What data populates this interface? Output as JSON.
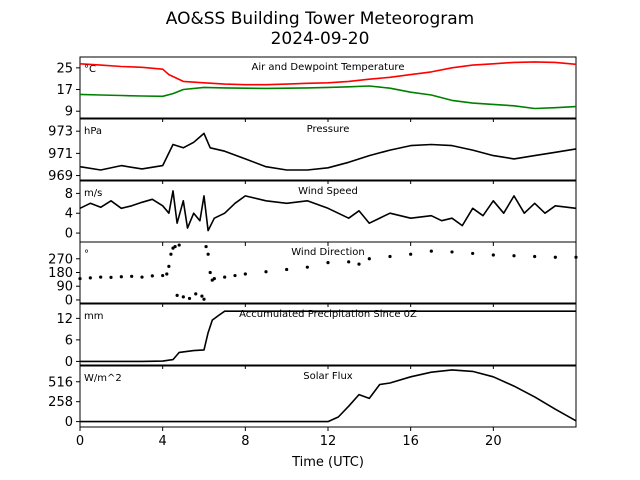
{
  "title_line1": "AO&SS Building Tower Meteorogram",
  "title_line2": "2024-09-20",
  "xlabel": "Time (UTC)",
  "colors": {
    "temperature": "#ff0000",
    "dewpoint": "#008000",
    "default": "#000000"
  },
  "chart_data": [
    {
      "type": "line",
      "title": "Air and Dewpoint Temperature",
      "unit": "°C",
      "xlim": [
        0,
        24
      ],
      "ylim": [
        6.5,
        29
      ],
      "yticks": [
        9,
        17,
        25
      ],
      "series": [
        {
          "color": "#ff0000",
          "points": [
            [
              0,
              26.5
            ],
            [
              1,
              26
            ],
            [
              2,
              25.5
            ],
            [
              3,
              25.2
            ],
            [
              4,
              24.5
            ],
            [
              4.3,
              22.5
            ],
            [
              5,
              20
            ],
            [
              6,
              19.5
            ],
            [
              7,
              19
            ],
            [
              8,
              18.8
            ],
            [
              9,
              18.8
            ],
            [
              10,
              19
            ],
            [
              11,
              19.3
            ],
            [
              12,
              19.5
            ],
            [
              13,
              20
            ],
            [
              14,
              20.8
            ],
            [
              15,
              21.5
            ],
            [
              16,
              22.5
            ],
            [
              17,
              23.5
            ],
            [
              18,
              25
            ],
            [
              19,
              26
            ],
            [
              20,
              26.5
            ],
            [
              21,
              27
            ],
            [
              22,
              27.2
            ],
            [
              23,
              27
            ],
            [
              24,
              26.3
            ]
          ]
        },
        {
          "color": "#008000",
          "points": [
            [
              0,
              15.2
            ],
            [
              1,
              15
            ],
            [
              2,
              14.8
            ],
            [
              3,
              14.6
            ],
            [
              4,
              14.5
            ],
            [
              4.5,
              15.5
            ],
            [
              5,
              17
            ],
            [
              6,
              17.8
            ],
            [
              7,
              17.6
            ],
            [
              8,
              17.5
            ],
            [
              9,
              17.4
            ],
            [
              10,
              17.5
            ],
            [
              11,
              17.6
            ],
            [
              12,
              17.8
            ],
            [
              13,
              18
            ],
            [
              14,
              18.3
            ],
            [
              15,
              17.5
            ],
            [
              16,
              16
            ],
            [
              17,
              15
            ],
            [
              18,
              13
            ],
            [
              19,
              12
            ],
            [
              20,
              11.5
            ],
            [
              21,
              11
            ],
            [
              22,
              10
            ],
            [
              23,
              10.3
            ],
            [
              24,
              10.7
            ]
          ]
        }
      ]
    },
    {
      "type": "line",
      "title": "Pressure",
      "unit": "hPa",
      "xlim": [
        0,
        24
      ],
      "ylim": [
        968.6,
        974.1
      ],
      "yticks": [
        969,
        971,
        973
      ],
      "series": [
        {
          "color": "#000000",
          "points": [
            [
              0,
              969.8
            ],
            [
              1,
              969.5
            ],
            [
              2,
              969.9
            ],
            [
              3,
              969.6
            ],
            [
              4,
              969.9
            ],
            [
              4.5,
              971.8
            ],
            [
              5,
              971.5
            ],
            [
              5.5,
              972
            ],
            [
              6,
              972.8
            ],
            [
              6.3,
              971.5
            ],
            [
              7,
              971.2
            ],
            [
              8,
              970.5
            ],
            [
              9,
              969.8
            ],
            [
              10,
              969.5
            ],
            [
              11,
              969.5
            ],
            [
              12,
              969.7
            ],
            [
              13,
              970.2
            ],
            [
              14,
              970.8
            ],
            [
              15,
              971.3
            ],
            [
              16,
              971.7
            ],
            [
              17,
              971.8
            ],
            [
              18,
              971.7
            ],
            [
              19,
              971.3
            ],
            [
              20,
              970.8
            ],
            [
              21,
              970.5
            ],
            [
              22,
              970.8
            ],
            [
              23,
              971.1
            ],
            [
              24,
              971.4
            ]
          ]
        }
      ]
    },
    {
      "type": "line",
      "title": "Wind Speed",
      "unit": "m/s",
      "xlim": [
        0,
        24
      ],
      "ylim": [
        -1.8,
        10.5
      ],
      "yticks": [
        0,
        4,
        8
      ],
      "series": [
        {
          "color": "#000000",
          "points": [
            [
              0,
              5
            ],
            [
              0.5,
              6
            ],
            [
              1,
              5.2
            ],
            [
              1.5,
              6.5
            ],
            [
              2,
              5
            ],
            [
              2.5,
              5.5
            ],
            [
              3,
              6.2
            ],
            [
              3.5,
              6.8
            ],
            [
              4,
              5.5
            ],
            [
              4.3,
              4
            ],
            [
              4.5,
              8.5
            ],
            [
              4.7,
              2
            ],
            [
              5,
              6.5
            ],
            [
              5.2,
              1
            ],
            [
              5.5,
              4
            ],
            [
              5.8,
              2.5
            ],
            [
              6,
              7.5
            ],
            [
              6.2,
              0.5
            ],
            [
              6.5,
              3
            ],
            [
              7,
              4
            ],
            [
              7.5,
              6
            ],
            [
              8,
              7.5
            ],
            [
              9,
              6.5
            ],
            [
              10,
              6
            ],
            [
              11,
              6.5
            ],
            [
              12,
              5
            ],
            [
              13,
              3
            ],
            [
              13.5,
              4.5
            ],
            [
              14,
              2
            ],
            [
              15,
              4
            ],
            [
              16,
              3
            ],
            [
              17,
              3.5
            ],
            [
              17.5,
              2.5
            ],
            [
              18,
              3
            ],
            [
              18.5,
              1.5
            ],
            [
              19,
              5
            ],
            [
              19.5,
              3.5
            ],
            [
              20,
              6.5
            ],
            [
              20.5,
              4
            ],
            [
              21,
              7.5
            ],
            [
              21.5,
              4
            ],
            [
              22,
              6
            ],
            [
              22.5,
              4
            ],
            [
              23,
              5.5
            ],
            [
              24,
              5
            ]
          ]
        }
      ]
    },
    {
      "type": "scatter",
      "title": "Wind Direction",
      "unit": "°",
      "xlim": [
        0,
        24
      ],
      "ylim": [
        -20,
        380
      ],
      "yticks": [
        0,
        90,
        180,
        270
      ],
      "series": [
        {
          "color": "#000000",
          "points": [
            [
              0,
              140
            ],
            [
              0.5,
              145
            ],
            [
              1,
              150
            ],
            [
              1.5,
              148
            ],
            [
              2,
              152
            ],
            [
              2.5,
              155
            ],
            [
              3,
              150
            ],
            [
              3.5,
              158
            ],
            [
              4,
              160
            ],
            [
              4.2,
              170
            ],
            [
              4.3,
              220
            ],
            [
              4.4,
              300
            ],
            [
              4.5,
              340
            ],
            [
              4.6,
              350
            ],
            [
              4.8,
              360
            ],
            [
              4.7,
              30
            ],
            [
              5,
              20
            ],
            [
              5.3,
              10
            ],
            [
              5.6,
              40
            ],
            [
              5.9,
              25
            ],
            [
              6,
              5
            ],
            [
              6.1,
              350
            ],
            [
              6.2,
              300
            ],
            [
              6.3,
              180
            ],
            [
              6.4,
              130
            ],
            [
              6.5,
              140
            ],
            [
              7,
              150
            ],
            [
              7.5,
              160
            ],
            [
              8,
              170
            ],
            [
              9,
              185
            ],
            [
              10,
              200
            ],
            [
              11,
              215
            ],
            [
              12,
              245
            ],
            [
              13,
              250
            ],
            [
              13.5,
              235
            ],
            [
              14,
              270
            ],
            [
              15,
              285
            ],
            [
              16,
              300
            ],
            [
              17,
              320
            ],
            [
              18,
              315
            ],
            [
              19,
              305
            ],
            [
              20,
              295
            ],
            [
              21,
              290
            ],
            [
              22,
              285
            ],
            [
              23,
              280
            ],
            [
              24,
              280
            ]
          ]
        }
      ]
    },
    {
      "type": "line",
      "title": "Accumulated Precipitation Since 0Z",
      "unit": "mm",
      "xlim": [
        0,
        24
      ],
      "ylim": [
        -1,
        16
      ],
      "yticks": [
        0,
        6,
        12
      ],
      "series": [
        {
          "color": "#000000",
          "points": [
            [
              0,
              0
            ],
            [
              3,
              0
            ],
            [
              4,
              0.1
            ],
            [
              4.5,
              0.5
            ],
            [
              4.8,
              2.5
            ],
            [
              5.5,
              3
            ],
            [
              6,
              3.2
            ],
            [
              6.2,
              8
            ],
            [
              6.4,
              11.5
            ],
            [
              6.7,
              12.8
            ],
            [
              7,
              14
            ],
            [
              24,
              14
            ]
          ]
        }
      ]
    },
    {
      "type": "line",
      "title": "Solar Flux",
      "unit": "W/m^2",
      "xlim": [
        0,
        24
      ],
      "ylim": [
        -70,
        720
      ],
      "yticks": [
        0,
        258,
        516
      ],
      "series": [
        {
          "color": "#000000",
          "points": [
            [
              0,
              0
            ],
            [
              12,
              0
            ],
            [
              12.5,
              60
            ],
            [
              13,
              200
            ],
            [
              13.5,
              350
            ],
            [
              14,
              300
            ],
            [
              14.5,
              480
            ],
            [
              15,
              500
            ],
            [
              16,
              580
            ],
            [
              17,
              640
            ],
            [
              18,
              670
            ],
            [
              19,
              650
            ],
            [
              20,
              580
            ],
            [
              21,
              460
            ],
            [
              22,
              320
            ],
            [
              23,
              160
            ],
            [
              24,
              10
            ]
          ]
        }
      ]
    }
  ],
  "xaxis": {
    "ticks": [
      0,
      4,
      8,
      12,
      16,
      20
    ],
    "tick_labels": [
      "0",
      "4",
      "8",
      "12",
      "16",
      "20"
    ]
  }
}
